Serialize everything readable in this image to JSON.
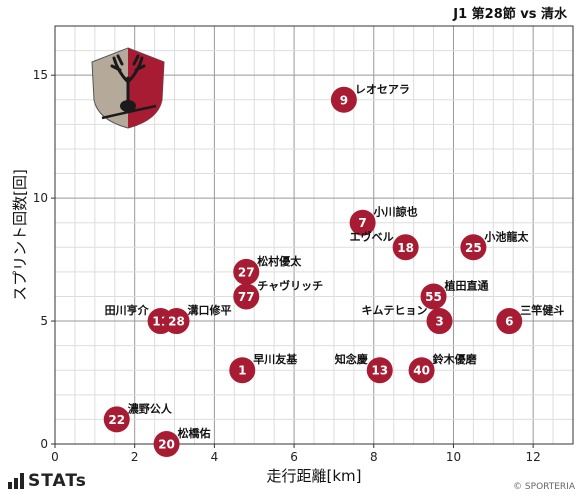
{
  "chart_data": {
    "type": "scatter",
    "title": "J1 第28節 vs 清水",
    "xlabel": "走行距離[km]",
    "ylabel": "スプリント回数[回]",
    "xlim": [
      0,
      13
    ],
    "ylim": [
      0,
      17
    ],
    "xticks": [
      0,
      2,
      4,
      6,
      8,
      10,
      12
    ],
    "yticks": [
      0,
      5,
      10,
      15
    ],
    "grid": true,
    "marker_color": "#a81c33",
    "points": [
      {
        "number": "9",
        "name": "レオセアラ",
        "x": 7.25,
        "y": 14
      },
      {
        "number": "7",
        "name": "小川諒也",
        "x": 7.72,
        "y": 9
      },
      {
        "number": "18",
        "name": "エヴベル",
        "x": 8.8,
        "y": 8
      },
      {
        "number": "25",
        "name": "小池龍太",
        "x": 10.5,
        "y": 8
      },
      {
        "number": "27",
        "name": "松村優太",
        "x": 4.8,
        "y": 7
      },
      {
        "number": "77",
        "name": "チャヴリッチ",
        "x": 4.8,
        "y": 6
      },
      {
        "number": "55",
        "name": "植田直通",
        "x": 9.5,
        "y": 6
      },
      {
        "number": "11",
        "name": "田川亨介",
        "x": 2.65,
        "y": 5
      },
      {
        "number": "28",
        "name": "溝口修平",
        "x": 3.05,
        "y": 5
      },
      {
        "number": "3",
        "name": "キムテヒョン",
        "x": 9.65,
        "y": 5
      },
      {
        "number": "6",
        "name": "三竿健斗",
        "x": 11.4,
        "y": 5
      },
      {
        "number": "1",
        "name": "早川友基",
        "x": 4.7,
        "y": 3
      },
      {
        "number": "13",
        "name": "知念慶",
        "x": 8.15,
        "y": 3
      },
      {
        "number": "40",
        "name": "鈴木優磨",
        "x": 9.2,
        "y": 3
      },
      {
        "number": "22",
        "name": "濃野公人",
        "x": 1.55,
        "y": 1
      },
      {
        "number": "20",
        "name": "松橋佑",
        "x": 2.8,
        "y": 0
      }
    ]
  },
  "footer": {
    "stats_logo": "STATs",
    "credit": "© SPORTERIA"
  },
  "emblem": {
    "icon": "club-crest-icon",
    "colors": [
      "#a81c33",
      "#b5a99a",
      "#222222"
    ]
  }
}
